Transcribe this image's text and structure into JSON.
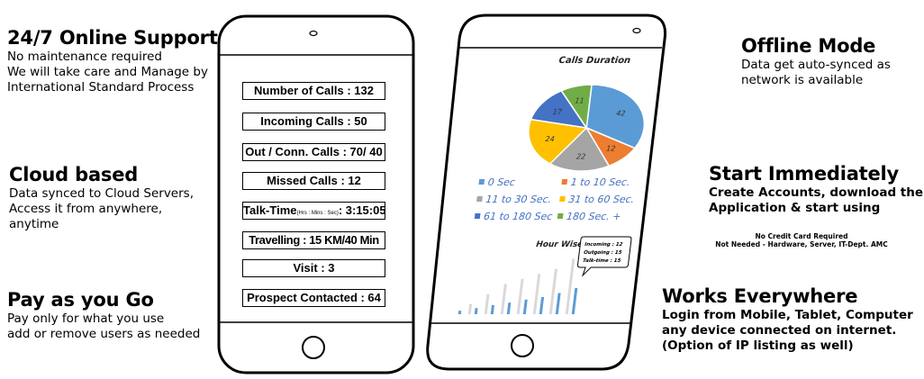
{
  "features_left": [
    {
      "title": "24/7 Online Support",
      "lines": [
        "No maintenance required",
        "We will take care and Manage by",
        "International Standard Process"
      ]
    },
    {
      "title": "Cloud based",
      "lines": [
        "Data synced to Cloud Servers,",
        "Access it from anywhere,",
        "anytime"
      ]
    },
    {
      "title": "Pay as you Go",
      "lines": [
        "Pay only for what you use",
        "add or remove users as needed"
      ]
    }
  ],
  "features_right": [
    {
      "title": "Offline Mode",
      "lines": [
        "Data get auto-synced as",
        "network is  available"
      ]
    },
    {
      "title": "Start Immediately",
      "lines": [
        "Create Accounts, download the",
        "Application & start using"
      ]
    },
    {
      "title": "Works Everywhere",
      "lines": [
        "Login from Mobile, Tablet, Computer",
        "any device connected on internet.",
        "(Option of IP listing as well)"
      ]
    }
  ],
  "note": {
    "line1": "No Credit Card Required",
    "line2": "Not Needed - Hardware, Server, IT-Dept. AMC"
  },
  "stats": {
    "number_of_calls": "Number of Calls : 132",
    "incoming_calls": "Incoming Calls : 50",
    "out_conn_calls": "Out / Conn. Calls : 70/ 40",
    "missed_calls": "Missed Calls : 12",
    "talk_time_label": "Talk-Time",
    "talk_time_unit": "(Hrs : Mins : Sec)",
    "talk_time_value": ": 3:15:05",
    "travelling": "Travelling : 15 KM/40 Min",
    "visit": "Visit : 3",
    "prospect_contacted": "Prospect Contacted : 64"
  },
  "chart_data": [
    {
      "type": "pie",
      "title": "Calls Duration",
      "categories": [
        "0 Sec",
        "1 to 10 Sec.",
        "11 to 30 Sec.",
        "31 to 60 Sec.",
        "61 to 180 Sec",
        "180 Sec. +"
      ],
      "values": [
        42,
        12,
        22,
        24,
        17,
        11
      ],
      "colors": [
        "#5b9bd5",
        "#ed7d31",
        "#a5a5a5",
        "#ffc000",
        "#4472c4",
        "#70ad47"
      ]
    },
    {
      "type": "bar",
      "title": "Hour Wise",
      "series": [
        {
          "color": "#d9d9d9",
          "values": [
            0,
            2,
            4,
            6,
            7,
            8,
            9,
            11
          ]
        },
        {
          "color": "#5b9bd5",
          "values": [
            0.7,
            1.2,
            1.8,
            2.3,
            2.9,
            3.4,
            4.2,
            5.2
          ]
        }
      ],
      "annotation": [
        "Incoming : 12",
        "Outgoing : 15",
        "Talk-time : 15"
      ]
    }
  ]
}
